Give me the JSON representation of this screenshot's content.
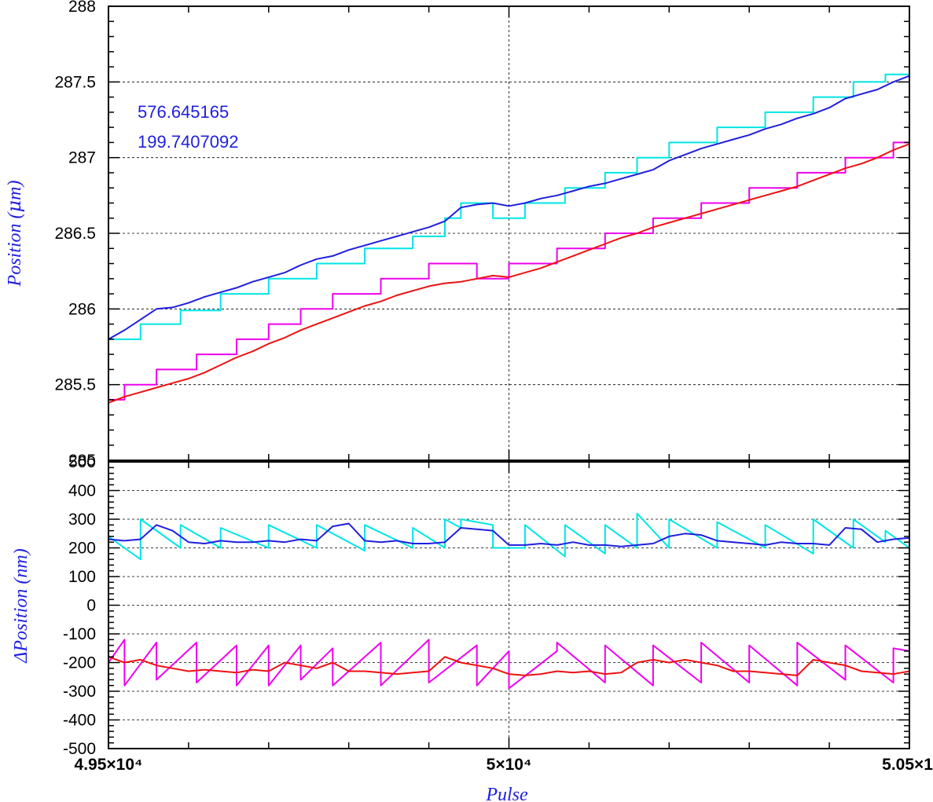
{
  "chart_data": [
    {
      "type": "line",
      "panel": "top",
      "ylabel": "Position (μm)",
      "ylabel_prefix": "Position (",
      "ylabel_unit_symbol": "μ",
      "ylabel_suffix": "m)",
      "xlim": [
        49500,
        50500
      ],
      "ylim": [
        285,
        288
      ],
      "yticks": [
        285,
        285.5,
        286,
        286.5,
        287,
        287.5,
        288
      ],
      "ytick_labels": [
        "285",
        "285.5",
        "286",
        "286.5",
        "287",
        "287.5",
        "288"
      ],
      "grid": true,
      "vline_x": 50000,
      "annotations": [
        "576.645165",
        "199.7407092"
      ],
      "series": [
        {
          "color": "#00e5e5",
          "x": [
            49500,
            49540,
            49540,
            49590,
            49590,
            49640,
            49640,
            49700,
            49700,
            49760,
            49760,
            49820,
            49820,
            49880,
            49880,
            49920,
            49920,
            49940,
            49940,
            49980,
            49980,
            50020,
            50020,
            50070,
            50070,
            50120,
            50120,
            50160,
            50160,
            50200,
            50200,
            50260,
            50260,
            50320,
            50320,
            50380,
            50380,
            50430,
            50430,
            50470,
            50470,
            50500
          ],
          "y": [
            285.8,
            285.8,
            285.9,
            285.9,
            285.99,
            285.99,
            286.1,
            286.1,
            286.2,
            286.2,
            286.3,
            286.3,
            286.4,
            286.4,
            286.48,
            286.48,
            286.6,
            286.6,
            286.7,
            286.7,
            286.6,
            286.6,
            286.7,
            286.7,
            286.8,
            286.8,
            286.9,
            286.9,
            287.0,
            287.0,
            287.1,
            287.1,
            287.2,
            287.2,
            287.3,
            287.3,
            287.4,
            287.4,
            287.5,
            287.5,
            287.55,
            287.55
          ]
        },
        {
          "color": "#1f1fe0",
          "x": [
            49500,
            49520,
            49540,
            49560,
            49580,
            49600,
            49620,
            49640,
            49660,
            49680,
            49700,
            49720,
            49740,
            49760,
            49780,
            49800,
            49820,
            49840,
            49860,
            49880,
            49900,
            49920,
            49940,
            49960,
            49980,
            50000,
            50020,
            50040,
            50060,
            50080,
            50100,
            50120,
            50140,
            50160,
            50180,
            50200,
            50220,
            50240,
            50260,
            50280,
            50300,
            50320,
            50340,
            50360,
            50380,
            50400,
            50420,
            50440,
            50460,
            50480,
            50500
          ],
          "y": [
            285.8,
            285.86,
            285.93,
            286.0,
            286.01,
            286.04,
            286.08,
            286.11,
            286.14,
            286.18,
            286.21,
            286.24,
            286.29,
            286.33,
            286.35,
            286.39,
            286.42,
            286.45,
            286.48,
            286.51,
            286.54,
            286.58,
            286.67,
            286.69,
            286.7,
            286.68,
            286.7,
            286.73,
            286.75,
            286.78,
            286.81,
            286.83,
            286.86,
            286.89,
            286.92,
            286.98,
            287.02,
            287.06,
            287.09,
            287.12,
            287.15,
            287.19,
            287.22,
            287.26,
            287.29,
            287.33,
            287.39,
            287.42,
            287.45,
            287.5,
            287.54
          ]
        },
        {
          "color": "#ee00ee",
          "x": [
            49500,
            49520,
            49520,
            49560,
            49560,
            49610,
            49610,
            49660,
            49660,
            49700,
            49700,
            49740,
            49740,
            49780,
            49780,
            49840,
            49840,
            49900,
            49900,
            49960,
            49960,
            50000,
            50000,
            50060,
            50060,
            50120,
            50120,
            50180,
            50180,
            50240,
            50240,
            50300,
            50300,
            50360,
            50360,
            50420,
            50420,
            50480,
            50480,
            50500
          ],
          "y": [
            285.4,
            285.4,
            285.5,
            285.5,
            285.6,
            285.6,
            285.7,
            285.7,
            285.8,
            285.8,
            285.9,
            285.9,
            286.0,
            286.0,
            286.1,
            286.1,
            286.2,
            286.2,
            286.3,
            286.3,
            286.2,
            286.2,
            286.3,
            286.3,
            286.4,
            286.4,
            286.5,
            286.5,
            286.6,
            286.6,
            286.7,
            286.7,
            286.8,
            286.8,
            286.9,
            286.9,
            287.0,
            287.0,
            287.1,
            287.1
          ]
        },
        {
          "color": "#ee1111",
          "x": [
            49500,
            49520,
            49540,
            49560,
            49580,
            49600,
            49620,
            49640,
            49660,
            49680,
            49700,
            49720,
            49740,
            49760,
            49780,
            49800,
            49820,
            49840,
            49860,
            49880,
            49900,
            49920,
            49940,
            49960,
            49980,
            50000,
            50020,
            50040,
            50060,
            50080,
            50100,
            50120,
            50140,
            50160,
            50180,
            50200,
            50220,
            50240,
            50260,
            50280,
            50300,
            50320,
            50340,
            50360,
            50380,
            50400,
            50420,
            50440,
            50460,
            50480,
            50500
          ],
          "y": [
            285.38,
            285.42,
            285.45,
            285.48,
            285.51,
            285.54,
            285.58,
            285.63,
            285.68,
            285.72,
            285.77,
            285.81,
            285.86,
            285.9,
            285.94,
            285.98,
            286.02,
            286.05,
            286.09,
            286.12,
            286.15,
            286.17,
            286.18,
            286.2,
            286.22,
            286.21,
            286.24,
            286.27,
            286.31,
            286.35,
            286.39,
            286.43,
            286.47,
            286.5,
            286.54,
            286.57,
            286.6,
            286.63,
            286.66,
            286.69,
            286.72,
            286.75,
            286.78,
            286.81,
            286.85,
            286.89,
            286.93,
            286.96,
            287.0,
            287.05,
            287.09
          ]
        }
      ]
    },
    {
      "type": "line",
      "panel": "bottom",
      "xlabel": "Pulse",
      "ylabel": "ΔPosition (nm)",
      "xlim": [
        49500,
        50500
      ],
      "ylim": [
        -500,
        500
      ],
      "xticks": [
        49500,
        50000,
        50500
      ],
      "xtick_labels": [
        "4.95×10⁴",
        "5×10⁴",
        "5.05×1"
      ],
      "yticks": [
        -500,
        -400,
        -300,
        -200,
        -100,
        0,
        100,
        200,
        300,
        400,
        500
      ],
      "ytick_labels": [
        "-500",
        "-400",
        "-300",
        "-200",
        "-100",
        "0",
        "100",
        "200",
        "300",
        "400",
        "500"
      ],
      "grid": true,
      "vline_x": 50000,
      "series": [
        {
          "color": "#00e5e5",
          "x": [
            49500,
            49540,
            49540,
            49590,
            49590,
            49640,
            49640,
            49700,
            49700,
            49760,
            49760,
            49820,
            49820,
            49880,
            49880,
            49920,
            49920,
            49940,
            49940,
            49980,
            49980,
            50020,
            50020,
            50070,
            50070,
            50120,
            50120,
            50160,
            50160,
            50200,
            50200,
            50260,
            50260,
            50320,
            50320,
            50380,
            50380,
            50430,
            50430,
            50470,
            50470,
            50500
          ],
          "y": [
            240,
            160,
            300,
            200,
            280,
            200,
            270,
            200,
            280,
            200,
            280,
            190,
            280,
            200,
            270,
            200,
            300,
            270,
            300,
            280,
            200,
            200,
            280,
            170,
            280,
            180,
            280,
            200,
            320,
            200,
            300,
            200,
            290,
            200,
            280,
            180,
            300,
            200,
            300,
            220,
            260,
            200
          ]
        },
        {
          "color": "#1f1fe0",
          "x": [
            49500,
            49520,
            49540,
            49560,
            49580,
            49600,
            49620,
            49640,
            49660,
            49680,
            49700,
            49720,
            49740,
            49760,
            49780,
            49800,
            49820,
            49840,
            49860,
            49880,
            49900,
            49920,
            49940,
            49960,
            49980,
            50000,
            50020,
            50040,
            50060,
            50080,
            50100,
            50120,
            50140,
            50160,
            50180,
            50200,
            50220,
            50240,
            50260,
            50280,
            50300,
            50320,
            50340,
            50360,
            50380,
            50400,
            50420,
            50440,
            50460,
            50480,
            50500
          ],
          "y": [
            230,
            225,
            230,
            280,
            260,
            220,
            215,
            225,
            220,
            220,
            225,
            220,
            230,
            225,
            275,
            285,
            225,
            220,
            225,
            215,
            215,
            220,
            270,
            265,
            260,
            210,
            210,
            215,
            210,
            220,
            210,
            210,
            205,
            210,
            215,
            240,
            250,
            245,
            225,
            220,
            215,
            210,
            220,
            215,
            215,
            210,
            270,
            265,
            220,
            230,
            235
          ]
        },
        {
          "color": "#ee00ee",
          "x": [
            49500,
            49520,
            49520,
            49560,
            49560,
            49610,
            49610,
            49660,
            49660,
            49700,
            49700,
            49740,
            49740,
            49780,
            49780,
            49840,
            49840,
            49900,
            49900,
            49960,
            49960,
            50000,
            50000,
            50060,
            50060,
            50120,
            50120,
            50180,
            50180,
            50240,
            50240,
            50300,
            50300,
            50360,
            50360,
            50420,
            50420,
            50480,
            50480,
            50500
          ],
          "y": [
            -200,
            -120,
            -280,
            -130,
            -260,
            -130,
            -270,
            -140,
            -280,
            -140,
            -280,
            -140,
            -260,
            -150,
            -280,
            -130,
            -280,
            -120,
            -270,
            -140,
            -280,
            -160,
            -290,
            -160,
            -130,
            -270,
            -140,
            -280,
            -140,
            -270,
            -130,
            -270,
            -140,
            -280,
            -130,
            -260,
            -140,
            -270,
            -150,
            -160
          ]
        },
        {
          "color": "#ee1111",
          "x": [
            49500,
            49520,
            49540,
            49560,
            49580,
            49600,
            49620,
            49640,
            49660,
            49680,
            49700,
            49720,
            49740,
            49760,
            49780,
            49800,
            49820,
            49840,
            49860,
            49880,
            49900,
            49920,
            49940,
            49960,
            49980,
            50000,
            50020,
            50040,
            50060,
            50080,
            50100,
            50120,
            50140,
            50160,
            50180,
            50200,
            50220,
            50240,
            50260,
            50280,
            50300,
            50320,
            50340,
            50360,
            50380,
            50400,
            50420,
            50440,
            50460,
            50480,
            50500
          ],
          "y": [
            -180,
            -200,
            -190,
            -210,
            -220,
            -230,
            -225,
            -230,
            -235,
            -225,
            -230,
            -200,
            -210,
            -220,
            -200,
            -230,
            -230,
            -235,
            -240,
            -235,
            -230,
            -180,
            -200,
            -210,
            -220,
            -240,
            -245,
            -240,
            -230,
            -235,
            -230,
            -240,
            -235,
            -200,
            -190,
            -200,
            -190,
            -200,
            -210,
            -230,
            -230,
            -235,
            -240,
            -245,
            -190,
            -200,
            -210,
            -230,
            -235,
            -240,
            -230
          ]
        }
      ]
    }
  ]
}
